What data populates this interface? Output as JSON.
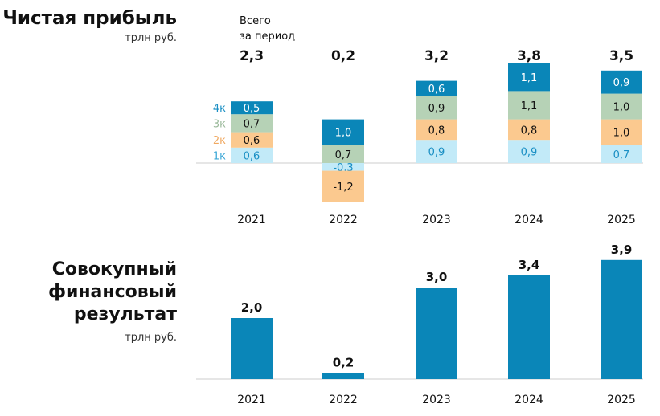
{
  "colors": {
    "q4": "#0a86b8",
    "q3": "#b6d2b6",
    "q2": "#fbc98f",
    "q1": "#c2eaf8",
    "total_bar": "#0a86b8",
    "axis": "#cccccc"
  },
  "chart_data": [
    {
      "type": "bar",
      "stacked": true,
      "title": "Чистая прибыль",
      "subtitle": "трлн руб.",
      "totals_label": [
        "Всего",
        "за период"
      ],
      "categories": [
        "2021",
        "2022",
        "2023",
        "2024",
        "2025"
      ],
      "totals": [
        "2,3",
        "0,2",
        "3,2",
        "3,8",
        "3,5"
      ],
      "series": [
        {
          "name": "1к",
          "values": [
            0.6,
            -0.3,
            0.9,
            0.9,
            0.7
          ]
        },
        {
          "name": "2к",
          "values": [
            0.6,
            -1.2,
            0.8,
            0.8,
            1.0
          ]
        },
        {
          "name": "3к",
          "values": [
            0.7,
            0.7,
            0.9,
            1.1,
            1.0
          ]
        },
        {
          "name": "4к",
          "values": [
            0.5,
            1.0,
            0.6,
            1.1,
            0.9
          ]
        }
      ]
    },
    {
      "type": "bar",
      "title": [
        "Совокупный",
        "финансовый",
        "результат"
      ],
      "subtitle": "трлн руб.",
      "categories": [
        "2021",
        "2022",
        "2023",
        "2024",
        "2025"
      ],
      "values": [
        2.0,
        0.2,
        3.0,
        3.4,
        3.9
      ]
    }
  ]
}
